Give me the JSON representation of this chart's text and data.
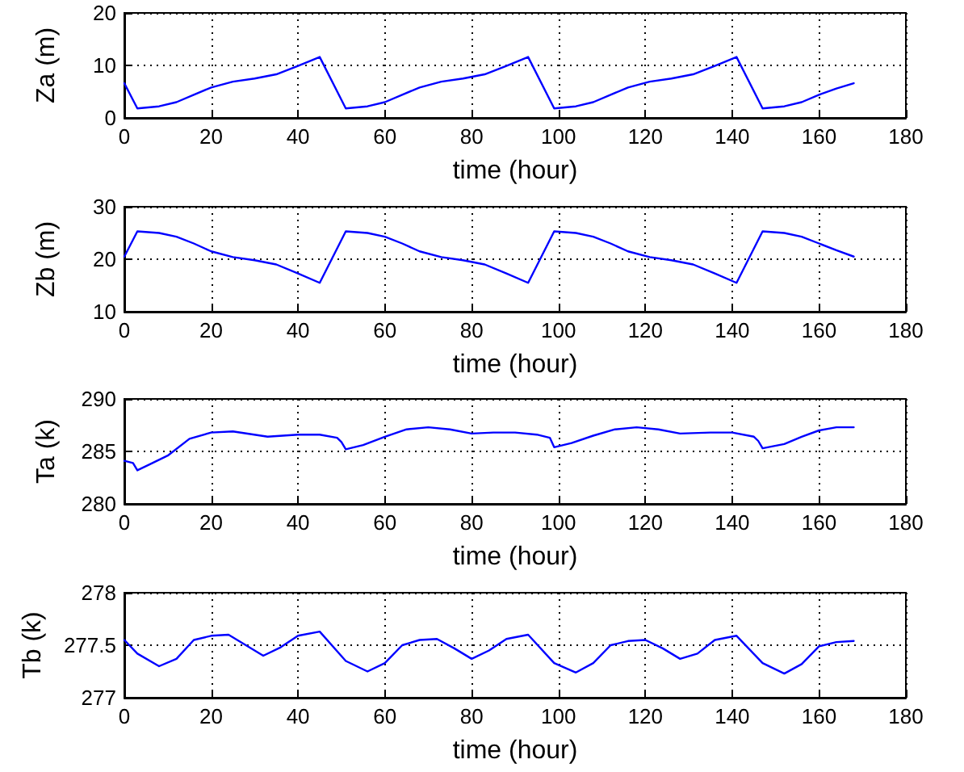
{
  "chart_data": [
    {
      "type": "line",
      "xlabel": "time (hour)",
      "ylabel": "Za (m)",
      "grid": true,
      "marker": "none",
      "xlim": [
        0,
        180
      ],
      "xticks": [
        0,
        20,
        40,
        60,
        80,
        100,
        120,
        140,
        160,
        180
      ],
      "ylim": [
        0,
        20
      ],
      "yticks": [
        0,
        10,
        20
      ],
      "series": [
        {
          "color": "#0000ff",
          "x": [
            0,
            3,
            8,
            12,
            16,
            20,
            25,
            30,
            35,
            40,
            45,
            51,
            56,
            60,
            64,
            68,
            73,
            78,
            83,
            88,
            93,
            99,
            104,
            108,
            112,
            116,
            121,
            126,
            131,
            136,
            141,
            147,
            152,
            156,
            160,
            164,
            168
          ],
          "values": [
            6.6,
            1.8,
            2.2,
            3,
            4.4,
            5.8,
            6.9,
            7.5,
            8.3,
            9.9,
            11.6,
            1.8,
            2.2,
            3,
            4.4,
            5.8,
            6.9,
            7.5,
            8.3,
            9.9,
            11.6,
            1.8,
            2.2,
            3,
            4.4,
            5.8,
            6.9,
            7.5,
            8.3,
            9.9,
            11.6,
            1.8,
            2.2,
            3,
            4.4,
            5.6,
            6.6
          ]
        }
      ]
    },
    {
      "type": "line",
      "xlabel": "time (hour)",
      "ylabel": "Zb (m)",
      "grid": true,
      "marker": "none",
      "xlim": [
        0,
        180
      ],
      "xticks": [
        0,
        20,
        40,
        60,
        80,
        100,
        120,
        140,
        160,
        180
      ],
      "ylim": [
        10,
        30
      ],
      "yticks": [
        10,
        20,
        30
      ],
      "series": [
        {
          "color": "#0000ff",
          "x": [
            0,
            3,
            8,
            12,
            16,
            20,
            25,
            30,
            35,
            40,
            45,
            51,
            56,
            60,
            64,
            68,
            73,
            78,
            83,
            88,
            93,
            99,
            104,
            108,
            112,
            116,
            121,
            126,
            131,
            136,
            141,
            147,
            152,
            156,
            160,
            164,
            168
          ],
          "values": [
            20.5,
            25.3,
            25,
            24.3,
            23,
            21.5,
            20.4,
            19.8,
            19,
            17.3,
            15.5,
            25.3,
            25,
            24.3,
            23,
            21.5,
            20.4,
            19.8,
            19,
            17.3,
            15.5,
            25.3,
            25,
            24.3,
            23,
            21.5,
            20.4,
            19.8,
            19,
            17.3,
            15.5,
            25.3,
            25,
            24.3,
            23,
            21.7,
            20.5
          ]
        }
      ]
    },
    {
      "type": "line",
      "xlabel": "time (hour)",
      "ylabel": "Ta (k)",
      "grid": true,
      "marker": "none",
      "xlim": [
        0,
        180
      ],
      "xticks": [
        0,
        20,
        40,
        60,
        80,
        100,
        120,
        140,
        160,
        180
      ],
      "ylim": [
        280,
        290
      ],
      "yticks": [
        280,
        285,
        290
      ],
      "series": [
        {
          "color": "#0000ff",
          "x": [
            0,
            2,
            3,
            6,
            10,
            15,
            20,
            25,
            33,
            40,
            45,
            49,
            50,
            51,
            55,
            60,
            65,
            70,
            75,
            80,
            85,
            90,
            95,
            98,
            99,
            103,
            108,
            113,
            118,
            123,
            128,
            135,
            140,
            145,
            146,
            147,
            152,
            156,
            160,
            164,
            168
          ],
          "values": [
            284.1,
            283.9,
            283.2,
            283.8,
            284.6,
            286.2,
            286.8,
            286.9,
            286.4,
            286.6,
            286.6,
            286.3,
            285.9,
            285.2,
            285.6,
            286.4,
            287.1,
            287.3,
            287.1,
            286.7,
            286.8,
            286.8,
            286.6,
            286.3,
            285.4,
            285.8,
            286.5,
            287.1,
            287.3,
            287.1,
            286.7,
            286.8,
            286.8,
            286.4,
            286.0,
            285.3,
            285.7,
            286.4,
            287.0,
            287.3,
            287.3
          ]
        }
      ]
    },
    {
      "type": "line",
      "xlabel": "time (hour)",
      "ylabel": "Tb (k)",
      "grid": true,
      "marker": "none",
      "xlim": [
        0,
        180
      ],
      "xticks": [
        0,
        20,
        40,
        60,
        80,
        100,
        120,
        140,
        160,
        180
      ],
      "ylim": [
        277,
        278
      ],
      "yticks": [
        277,
        277.5,
        278
      ],
      "series": [
        {
          "color": "#0000ff",
          "x": [
            0,
            3,
            8,
            12,
            16,
            20,
            24,
            28,
            32,
            36,
            40,
            45,
            51,
            56,
            60,
            64,
            68,
            72,
            76,
            80,
            84,
            88,
            93,
            99,
            104,
            108,
            112,
            116,
            120,
            124,
            128,
            132,
            136,
            141,
            147,
            152,
            156,
            160,
            164,
            168
          ],
          "values": [
            277.55,
            277.42,
            277.3,
            277.37,
            277.55,
            277.59,
            277.6,
            277.5,
            277.4,
            277.48,
            277.59,
            277.63,
            277.35,
            277.25,
            277.33,
            277.5,
            277.55,
            277.56,
            277.47,
            277.37,
            277.45,
            277.56,
            277.6,
            277.33,
            277.24,
            277.33,
            277.5,
            277.54,
            277.55,
            277.47,
            277.37,
            277.42,
            277.55,
            277.59,
            277.33,
            277.23,
            277.32,
            277.49,
            277.53,
            277.54
          ]
        }
      ]
    }
  ]
}
